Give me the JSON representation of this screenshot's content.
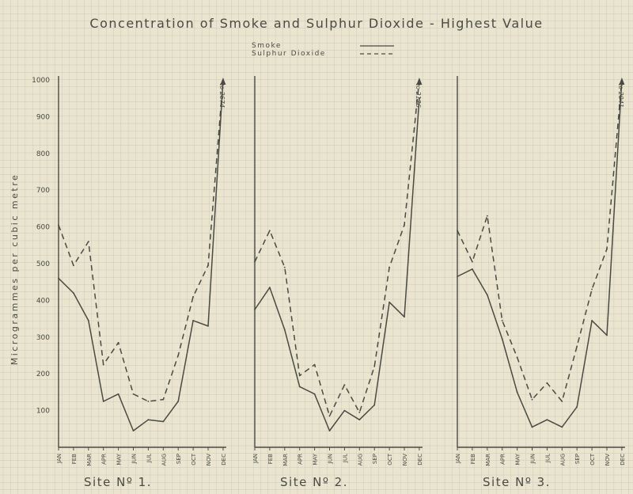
{
  "chart_data": {
    "type": "line",
    "title": "Concentration of Smoke and Sulphur Dioxide - Highest Value",
    "ylabel": "Microgrammes per cubic metre",
    "ylim": [
      0,
      1000
    ],
    "yticks": [
      100,
      200,
      300,
      400,
      500,
      600,
      700,
      800,
      900,
      1000
    ],
    "categories": [
      "JAN",
      "FEB",
      "MAR",
      "APR",
      "MAY",
      "JUN",
      "JUL",
      "AUG",
      "SEP",
      "OCT",
      "NOV",
      "DEC"
    ],
    "legend": {
      "placement": "top-center",
      "entries": [
        {
          "label": "Smoke",
          "style": "solid"
        },
        {
          "label": "Sulphur Dioxide",
          "style": "dashed"
        }
      ]
    },
    "grid": true,
    "colors": {
      "background": "#ebe5cf",
      "grid": "#b9c1b7",
      "ink": "#4a4a44"
    },
    "panels": [
      {
        "title": "Site Nº 1.",
        "series": [
          {
            "name": "Smoke",
            "values": [
              460,
              420,
              345,
              125,
              145,
              45,
              75,
              70,
              125,
              345,
              330,
              1000
            ]
          },
          {
            "name": "Sulphur Dioxide",
            "values": [
              605,
              495,
              560,
              225,
              285,
              145,
              125,
              130,
              250,
              410,
              495,
              1000
            ]
          }
        ],
        "annotation": "to 2674"
      },
      {
        "title": "Site Nº 2.",
        "series": [
          {
            "name": "Smoke",
            "values": [
              375,
              435,
              320,
              165,
              145,
              45,
              100,
              75,
              115,
              395,
              355,
              950
            ]
          },
          {
            "name": "Sulphur Dioxide",
            "values": [
              505,
              590,
              490,
              195,
              225,
              85,
              170,
              95,
              220,
              490,
              605,
              1000
            ]
          }
        ],
        "annotation": "to 2126"
      },
      {
        "title": "Site Nº 3.",
        "series": [
          {
            "name": "Smoke",
            "values": [
              465,
              485,
              415,
              295,
              150,
              55,
              75,
              55,
              110,
              345,
              305,
              1000
            ]
          },
          {
            "name": "Sulphur Dioxide",
            "values": [
              590,
              505,
              630,
              345,
              245,
              130,
              175,
              125,
              275,
              430,
              540,
              1000
            ]
          }
        ],
        "annotation": "to 2041"
      }
    ]
  }
}
